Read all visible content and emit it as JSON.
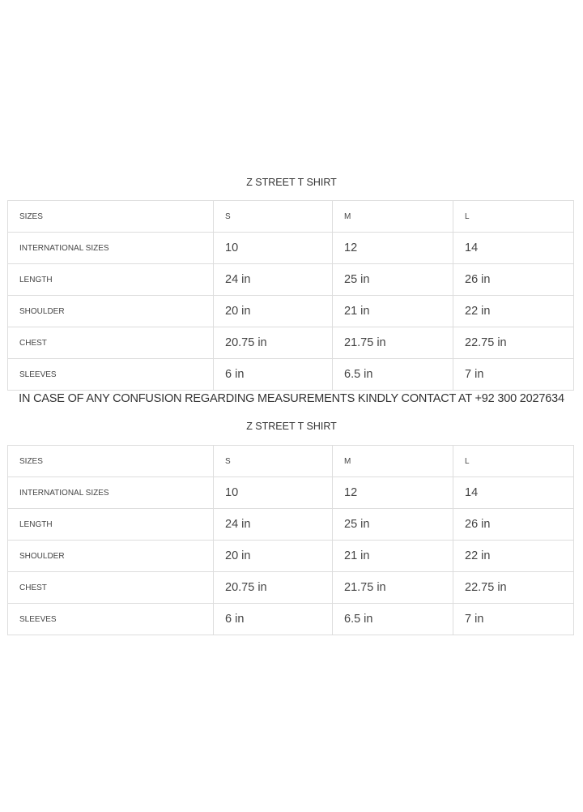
{
  "tables": [
    {
      "title": "Z STREET T SHIRT",
      "rows": [
        {
          "label": "SIZES",
          "values": [
            "S",
            "M",
            "L"
          ]
        },
        {
          "label": "INTERNATIONAL SIZES",
          "values": [
            "10",
            "12",
            "14"
          ]
        },
        {
          "label": "LENGTH",
          "values": [
            "24 in",
            "25 in",
            "26 in"
          ]
        },
        {
          "label": "SHOULDER",
          "values": [
            "20 in",
            "21 in",
            "22 in"
          ]
        },
        {
          "label": "CHEST",
          "values": [
            "20.75 in",
            "21.75 in",
            "22.75 in"
          ]
        },
        {
          "label": "SLEEVES",
          "values": [
            "6 in",
            "6.5 in",
            "7 in"
          ]
        }
      ]
    },
    {
      "title": "Z STREET T SHIRT",
      "rows": [
        {
          "label": "SIZES",
          "values": [
            "S",
            "M",
            "L"
          ]
        },
        {
          "label": "INTERNATIONAL SIZES",
          "values": [
            "10",
            "12",
            "14"
          ]
        },
        {
          "label": "LENGTH",
          "values": [
            "24 in",
            "25 in",
            "26 in"
          ]
        },
        {
          "label": "SHOULDER",
          "values": [
            "20 in",
            "21 in",
            "22 in"
          ]
        },
        {
          "label": "CHEST",
          "values": [
            "20.75 in",
            "21.75 in",
            "22.75 in"
          ]
        },
        {
          "label": "SLEEVES",
          "values": [
            "6 in",
            "6.5 in",
            "7 in"
          ]
        }
      ]
    }
  ],
  "note": "IN CASE OF ANY CONFUSION REGARDING MEASUREMENTS KINDLY CONTACT AT +92 300 2027634"
}
